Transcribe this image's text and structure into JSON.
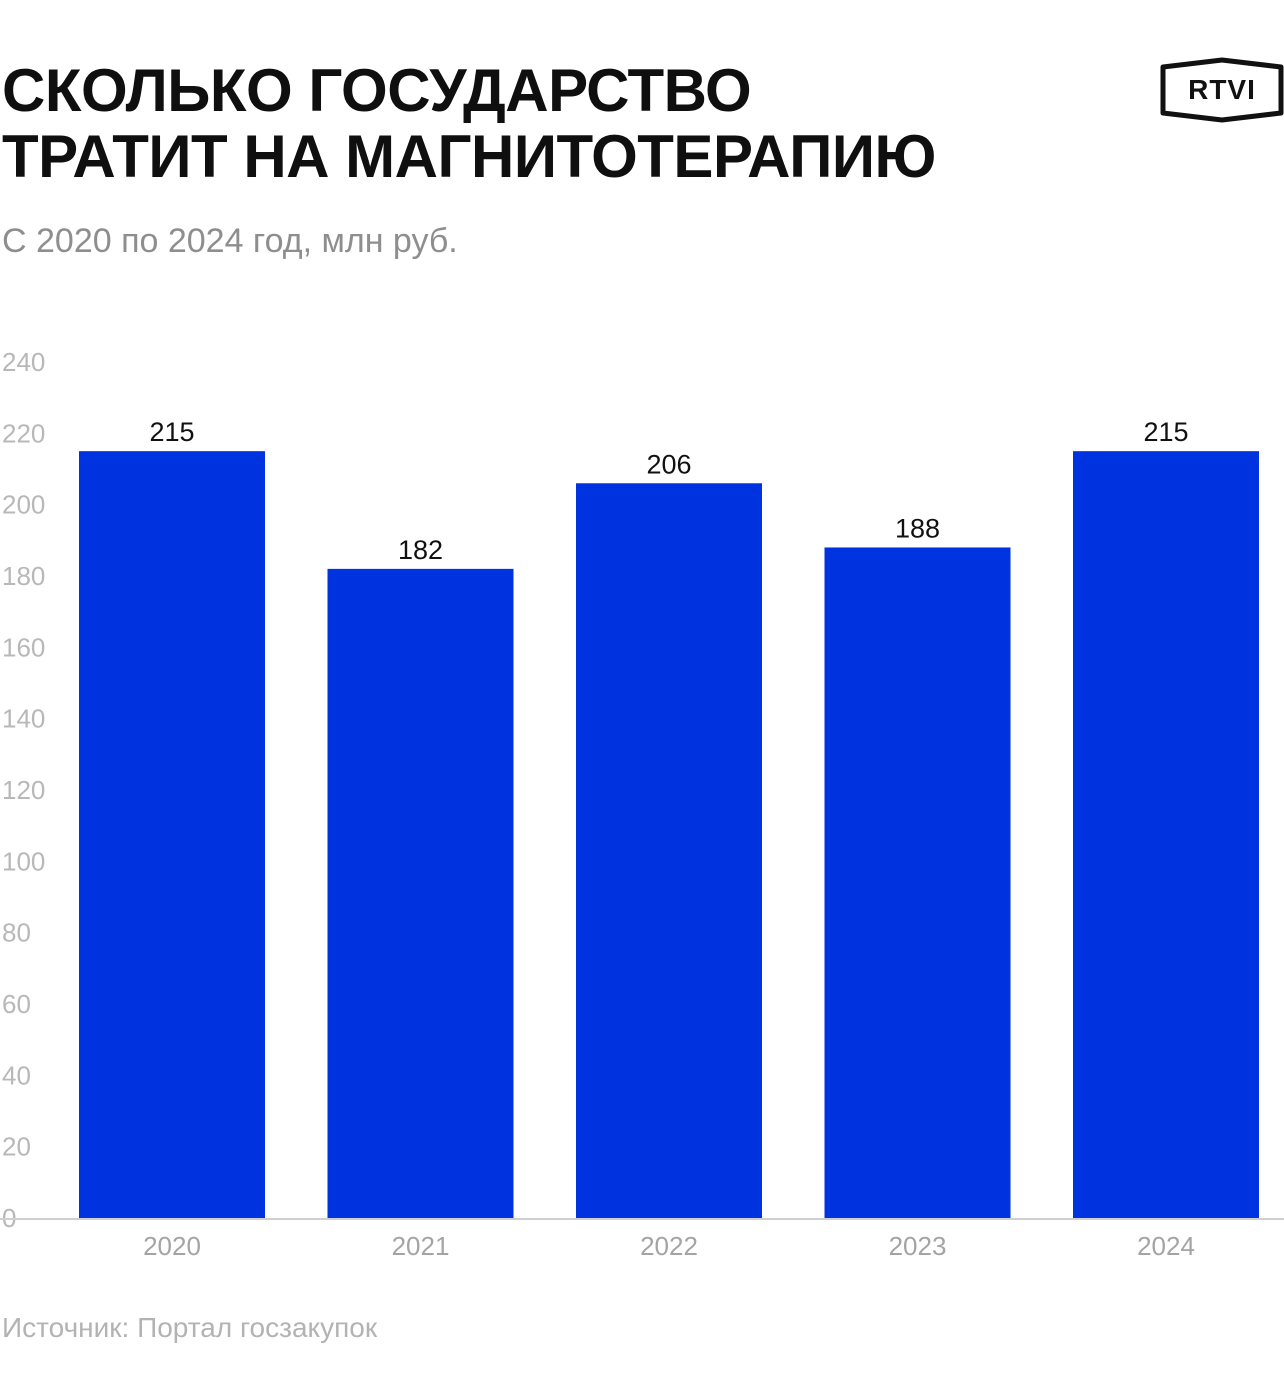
{
  "header": {
    "title_line1": "СКОЛЬКО ГОСУДАРСТВО",
    "title_line2": "ТРАТИТ НА МАГНИТОТЕРАПИЮ",
    "subtitle": "С 2020 по 2024 год, млн руб.",
    "logo_text": "RTVI"
  },
  "footer": {
    "source": "Источник: Портал госзакупок"
  },
  "colors": {
    "bar": "#0033e0",
    "axis": "#cfcfcf"
  },
  "chart_data": {
    "type": "bar",
    "categories": [
      "2020",
      "2021",
      "2022",
      "2023",
      "2024"
    ],
    "values": [
      215,
      182,
      206,
      188,
      215
    ],
    "data_labels": [
      "215",
      "182",
      "206",
      "188",
      "215"
    ],
    "ylim": [
      0,
      240
    ],
    "yticks": [
      0,
      20,
      40,
      60,
      80,
      100,
      120,
      140,
      160,
      180,
      200,
      220,
      240
    ],
    "grid": false,
    "xlabel": "",
    "ylabel": ""
  }
}
